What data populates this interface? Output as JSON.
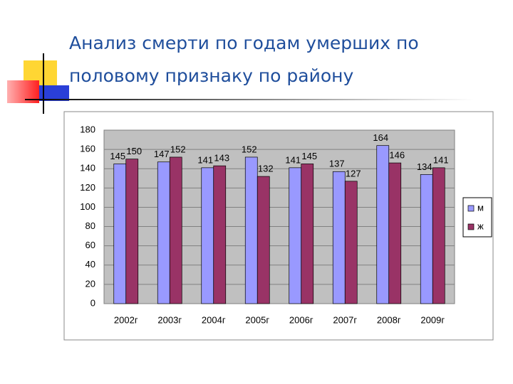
{
  "chart_data": {
    "type": "bar",
    "title": "Анализ смерти по годам умерших по половому признаку по району",
    "categories": [
      "2002г",
      "2003г",
      "2004г",
      "2005г",
      "2006г",
      "2007г",
      "2008г",
      "2009г"
    ],
    "series": [
      {
        "name": "м",
        "color": "#9999ff",
        "values": [
          145,
          147,
          141,
          152,
          141,
          137,
          164,
          134
        ]
      },
      {
        "name": "ж",
        "color": "#993366",
        "values": [
          150,
          152,
          143,
          132,
          145,
          127,
          146,
          141
        ]
      }
    ],
    "ylim": [
      0,
      180
    ],
    "yticks": [
      0,
      20,
      40,
      60,
      80,
      100,
      120,
      140,
      160,
      180
    ],
    "grid": true,
    "legend": "right"
  }
}
